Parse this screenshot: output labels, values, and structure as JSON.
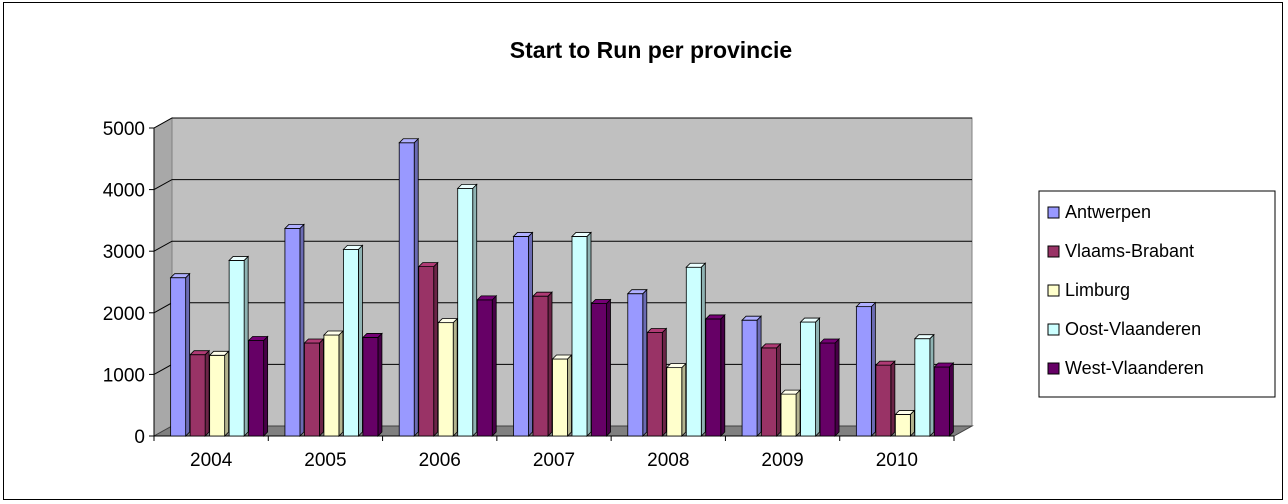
{
  "chart_data": {
    "type": "bar",
    "title": "Start to Run per provincie",
    "xlabel": "",
    "ylabel": "",
    "categories": [
      "2004",
      "2005",
      "2006",
      "2007",
      "2008",
      "2009",
      "2010"
    ],
    "ylim": [
      0,
      5000
    ],
    "yticks": [
      "0",
      "1000",
      "2000",
      "3000",
      "4000",
      "5000"
    ],
    "grid": true,
    "legend_position": "right",
    "series": [
      {
        "name": "Antwerpen",
        "color": "#9999ff",
        "values": [
          2570,
          3370,
          4760,
          3240,
          2310,
          1880,
          2100
        ]
      },
      {
        "name": "Vlaams-Brabant",
        "color": "#993366",
        "values": [
          1320,
          1510,
          2750,
          2270,
          1680,
          1430,
          1150
        ]
      },
      {
        "name": "Limburg",
        "color": "#ffffcc",
        "values": [
          1310,
          1640,
          1840,
          1250,
          1110,
          680,
          350
        ]
      },
      {
        "name": "Oost-Vlaanderen",
        "color": "#ccffff",
        "values": [
          2850,
          3030,
          4020,
          3240,
          2740,
          1850,
          1580
        ]
      },
      {
        "name": "West-Vlaanderen",
        "color": "#660066",
        "values": [
          1550,
          1600,
          2210,
          2150,
          1900,
          1510,
          1120
        ]
      }
    ]
  }
}
